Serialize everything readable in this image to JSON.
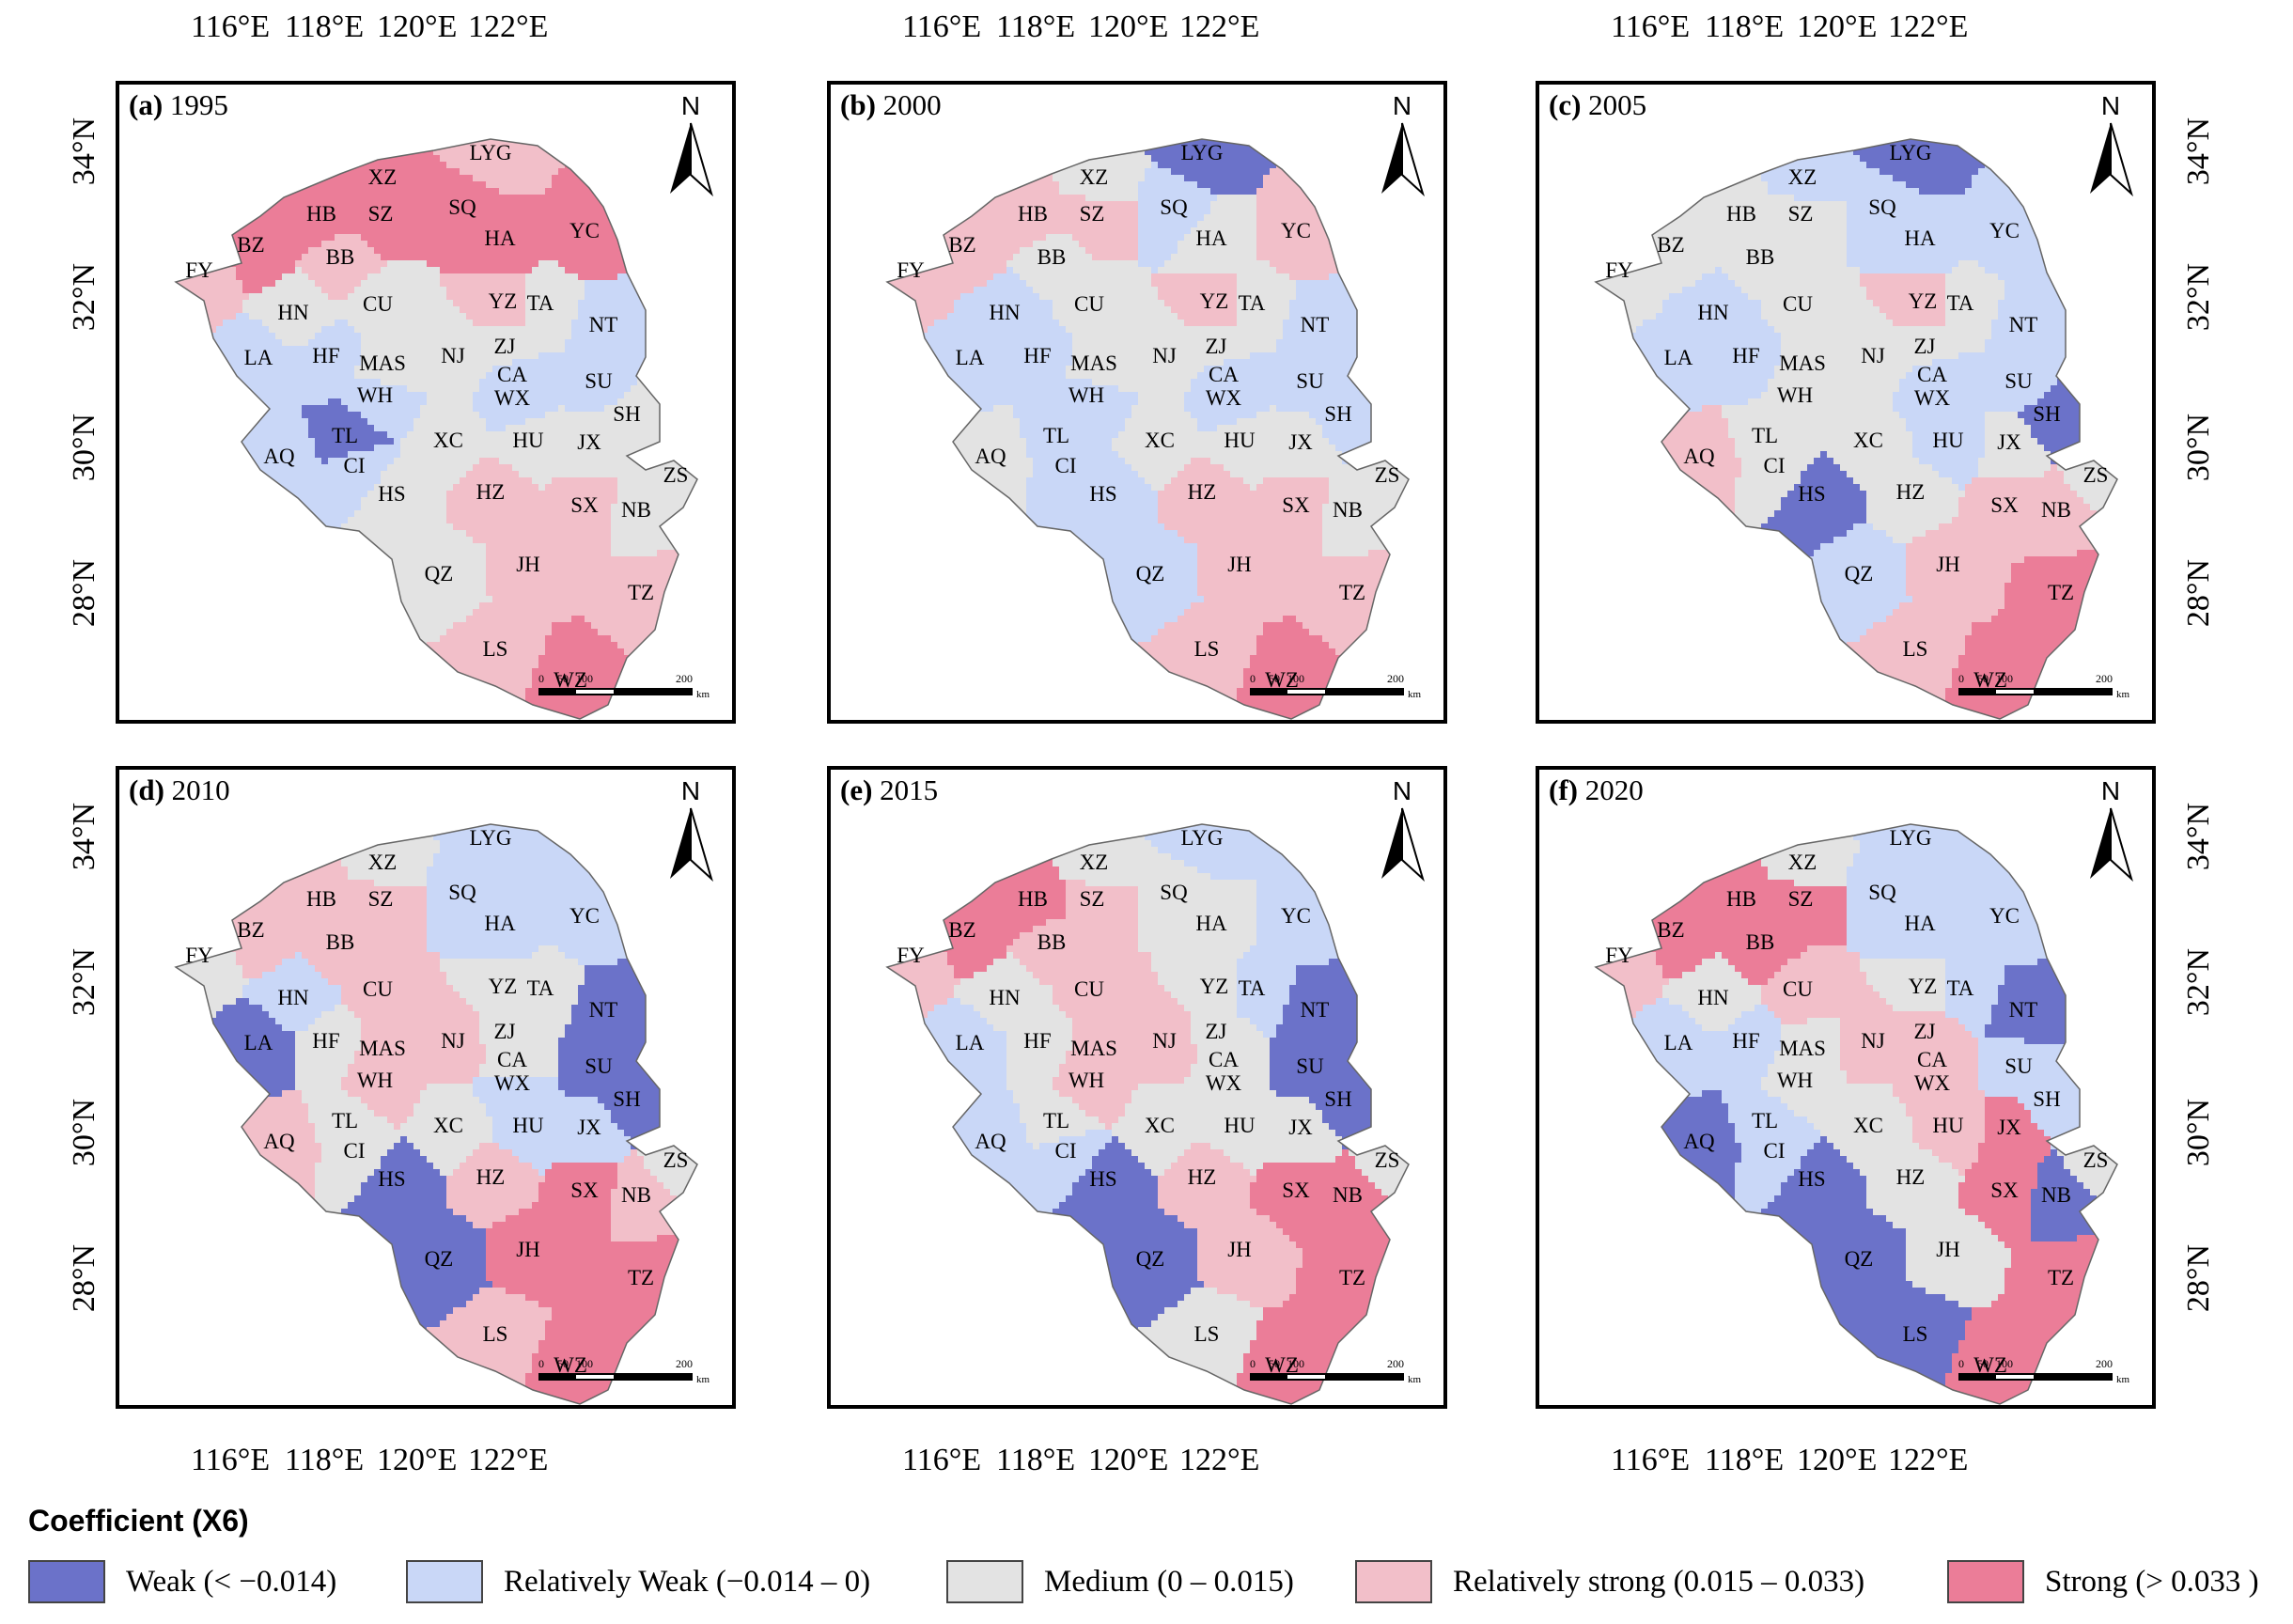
{
  "legend": {
    "title": "Coefficient (X6)",
    "classes": [
      {
        "id": "W",
        "label": "Weak (< −0.014)",
        "color": "#6b72c9"
      },
      {
        "id": "RW",
        "label": "Relatively Weak (−0.014 – 0)",
        "color": "#c9d7f7"
      },
      {
        "id": "M",
        "label": "Medium (0 – 0.015)",
        "color": "#e3e3e3"
      },
      {
        "id": "RS",
        "label": "Relatively strong (0.015 – 0.033)",
        "color": "#f2bfc9"
      },
      {
        "id": "S",
        "label": "Strong (> 0.033 )",
        "color": "#eb7d98"
      }
    ]
  },
  "axes": {
    "lon_labels": [
      "116°E",
      "118°E",
      "120°E",
      "122°E"
    ],
    "lat_labels": [
      "34°N",
      "32°N",
      "30°N",
      "28°N"
    ]
  },
  "north_label": "N",
  "scale": {
    "ticks": [
      "0",
      "50",
      "100",
      "200"
    ],
    "unit": "km"
  },
  "cities": [
    "LYG",
    "XZ",
    "SQ",
    "HB",
    "SZ",
    "HA",
    "BZ",
    "YC",
    "BB",
    "FY",
    "HN",
    "CU",
    "YZ",
    "TA",
    "NT",
    "LA",
    "HF",
    "MAS",
    "NJ",
    "ZJ",
    "CA",
    "SU",
    "WX",
    "WH",
    "SH",
    "TL",
    "XC",
    "HU",
    "JX",
    "AQ",
    "CI",
    "HS",
    "HZ",
    "SX",
    "NB",
    "ZS",
    "QZ",
    "JH",
    "TZ",
    "LS",
    "WZ"
  ],
  "panels": [
    {
      "title_letter": "(a)",
      "year": "1995",
      "classes": {
        "LYG": "RS",
        "XZ": "S",
        "SQ": "S",
        "HB": "S",
        "SZ": "S",
        "HA": "S",
        "BZ": "S",
        "YC": "S",
        "BB": "RS",
        "FY": "RS",
        "HN": "M",
        "CU": "M",
        "YZ": "RS",
        "TA": "M",
        "NT": "RW",
        "LA": "RW",
        "HF": "RW",
        "MAS": "M",
        "NJ": "M",
        "ZJ": "M",
        "CA": "RW",
        "SU": "RW",
        "WX": "RW",
        "WH": "RW",
        "SH": "M",
        "TL": "W",
        "XC": "M",
        "HU": "M",
        "JX": "M",
        "AQ": "RW",
        "CI": "RW",
        "HS": "M",
        "HZ": "RS",
        "SX": "RS",
        "NB": "M",
        "ZS": "M",
        "QZ": "M",
        "JH": "RS",
        "TZ": "RS",
        "LS": "RS",
        "WZ": "S"
      }
    },
    {
      "title_letter": "(b)",
      "year": "2000",
      "classes": {
        "LYG": "W",
        "XZ": "M",
        "SQ": "RW",
        "HB": "RS",
        "SZ": "RS",
        "HA": "M",
        "BZ": "RS",
        "YC": "RS",
        "BB": "M",
        "FY": "RS",
        "HN": "RW",
        "CU": "M",
        "YZ": "RS",
        "TA": "M",
        "NT": "RW",
        "LA": "RW",
        "HF": "RW",
        "MAS": "M",
        "NJ": "M",
        "ZJ": "M",
        "CA": "RW",
        "SU": "RW",
        "WX": "RW",
        "WH": "RW",
        "SH": "RW",
        "TL": "RW",
        "XC": "M",
        "HU": "M",
        "JX": "M",
        "AQ": "M",
        "CI": "RW",
        "HS": "RW",
        "HZ": "RS",
        "SX": "RS",
        "NB": "M",
        "ZS": "M",
        "QZ": "RW",
        "JH": "RS",
        "TZ": "RS",
        "LS": "RS",
        "WZ": "S"
      }
    },
    {
      "title_letter": "(c)",
      "year": "2005",
      "classes": {
        "LYG": "W",
        "XZ": "RW",
        "SQ": "RW",
        "HB": "M",
        "SZ": "M",
        "HA": "RW",
        "BZ": "M",
        "YC": "RW",
        "BB": "M",
        "FY": "M",
        "HN": "RW",
        "CU": "M",
        "YZ": "RS",
        "TA": "M",
        "NT": "RW",
        "LA": "RW",
        "HF": "RW",
        "MAS": "M",
        "NJ": "M",
        "ZJ": "M",
        "CA": "RW",
        "SU": "RW",
        "WX": "RW",
        "WH": "M",
        "SH": "W",
        "TL": "M",
        "XC": "M",
        "HU": "RW",
        "JX": "M",
        "AQ": "RS",
        "CI": "M",
        "HS": "W",
        "HZ": "M",
        "SX": "RS",
        "NB": "RS",
        "ZS": "M",
        "QZ": "RW",
        "JH": "RS",
        "TZ": "S",
        "LS": "RS",
        "WZ": "S"
      }
    },
    {
      "title_letter": "(d)",
      "year": "2010",
      "classes": {
        "LYG": "RW",
        "XZ": "M",
        "SQ": "RW",
        "HB": "RS",
        "SZ": "RS",
        "HA": "RW",
        "BZ": "RS",
        "YC": "RW",
        "BB": "RS",
        "FY": "M",
        "HN": "RW",
        "CU": "RS",
        "YZ": "M",
        "TA": "M",
        "NT": "W",
        "LA": "W",
        "HF": "M",
        "MAS": "RS",
        "NJ": "RS",
        "ZJ": "M",
        "CA": "M",
        "SU": "W",
        "WX": "RW",
        "WH": "RS",
        "SH": "W",
        "TL": "M",
        "XC": "M",
        "HU": "RW",
        "JX": "RW",
        "AQ": "RS",
        "CI": "M",
        "HS": "W",
        "HZ": "RS",
        "SX": "S",
        "NB": "RS",
        "ZS": "M",
        "QZ": "W",
        "JH": "S",
        "TZ": "S",
        "LS": "RS",
        "WZ": "S"
      }
    },
    {
      "title_letter": "(e)",
      "year": "2015",
      "classes": {
        "LYG": "RW",
        "XZ": "M",
        "SQ": "M",
        "HB": "S",
        "SZ": "RS",
        "HA": "M",
        "BZ": "S",
        "YC": "RW",
        "BB": "RS",
        "FY": "RS",
        "HN": "M",
        "CU": "RS",
        "YZ": "M",
        "TA": "RW",
        "NT": "W",
        "LA": "RW",
        "HF": "M",
        "MAS": "RS",
        "NJ": "RS",
        "ZJ": "M",
        "CA": "M",
        "SU": "W",
        "WX": "M",
        "WH": "RS",
        "SH": "W",
        "TL": "M",
        "XC": "M",
        "HU": "M",
        "JX": "M",
        "AQ": "RW",
        "CI": "RW",
        "HS": "W",
        "HZ": "RS",
        "SX": "S",
        "NB": "S",
        "ZS": "M",
        "QZ": "W",
        "JH": "RS",
        "TZ": "S",
        "LS": "M",
        "WZ": "S"
      }
    },
    {
      "title_letter": "(f)",
      "year": "2020",
      "classes": {
        "LYG": "RW",
        "XZ": "M",
        "SQ": "RW",
        "HB": "S",
        "SZ": "S",
        "HA": "RW",
        "BZ": "S",
        "YC": "RW",
        "BB": "S",
        "FY": "RS",
        "HN": "M",
        "CU": "RS",
        "YZ": "M",
        "TA": "RW",
        "NT": "W",
        "LA": "RW",
        "HF": "RW",
        "MAS": "M",
        "NJ": "RS",
        "ZJ": "RS",
        "CA": "RS",
        "SU": "RW",
        "WX": "RS",
        "WH": "M",
        "SH": "RW",
        "TL": "RW",
        "XC": "M",
        "HU": "RS",
        "JX": "S",
        "AQ": "W",
        "CI": "RW",
        "HS": "W",
        "HZ": "M",
        "SX": "S",
        "NB": "W",
        "ZS": "M",
        "QZ": "W",
        "JH": "M",
        "TZ": "S",
        "LS": "W",
        "WZ": "S"
      }
    }
  ]
}
